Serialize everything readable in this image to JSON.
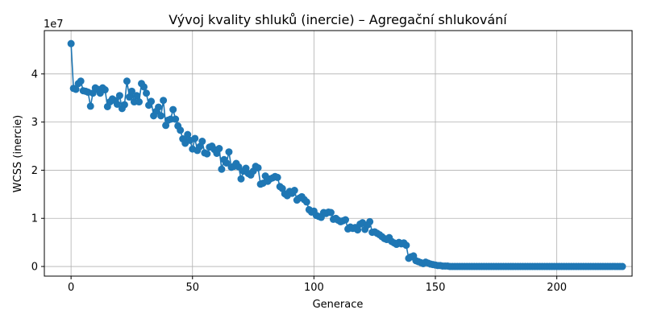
{
  "chart_data": {
    "type": "line",
    "title": "Vývoj kvality shluků (inercie) – Agregační shlukování",
    "xlabel": "Generace",
    "ylabel": "WCSS (inercie)",
    "y_offset_label": "1e7",
    "xlim": [
      -11,
      231
    ],
    "ylim": [
      -0.2,
      4.9
    ],
    "x_ticks": [
      0,
      50,
      100,
      150,
      200
    ],
    "y_ticks": [
      0,
      1,
      2,
      3,
      4
    ],
    "y_scale": 10000000,
    "grid": true,
    "legend": "none",
    "series": [
      {
        "color": "#1f77b4",
        "marker": "o",
        "x_start": 0,
        "x_step": 1,
        "values": [
          4.63,
          3.7,
          3.68,
          3.8,
          3.85,
          3.65,
          3.64,
          3.62,
          3.33,
          3.6,
          3.71,
          3.68,
          3.6,
          3.71,
          3.67,
          3.32,
          3.42,
          3.48,
          3.45,
          3.37,
          3.55,
          3.28,
          3.36,
          3.85,
          3.52,
          3.64,
          3.42,
          3.55,
          3.42,
          3.8,
          3.73,
          3.6,
          3.35,
          3.43,
          3.13,
          3.22,
          3.31,
          3.13,
          3.45,
          2.93,
          3.04,
          3.06,
          3.26,
          3.06,
          2.92,
          2.83,
          2.65,
          2.56,
          2.74,
          2.62,
          2.44,
          2.66,
          2.41,
          2.49,
          2.6,
          2.36,
          2.34,
          2.48,
          2.5,
          2.43,
          2.35,
          2.45,
          2.02,
          2.22,
          2.15,
          2.38,
          2.06,
          2.08,
          2.14,
          2.07,
          1.82,
          1.98,
          2.04,
          1.93,
          1.9,
          1.98,
          2.08,
          2.05,
          1.71,
          1.73,
          1.88,
          1.77,
          1.82,
          1.84,
          1.87,
          1.85,
          1.66,
          1.62,
          1.51,
          1.47,
          1.56,
          1.52,
          1.58,
          1.38,
          1.42,
          1.45,
          1.39,
          1.34,
          1.18,
          1.13,
          1.15,
          1.06,
          1.04,
          1.02,
          1.12,
          1.1,
          1.13,
          1.12,
          0.98,
          1.0,
          0.96,
          0.93,
          0.95,
          0.97,
          0.78,
          0.82,
          0.79,
          0.81,
          0.76,
          0.88,
          0.91,
          0.77,
          0.86,
          0.93,
          0.71,
          0.72,
          0.69,
          0.66,
          0.62,
          0.58,
          0.56,
          0.6,
          0.52,
          0.49,
          0.46,
          0.5,
          0.47,
          0.49,
          0.44,
          0.17,
          0.2,
          0.22,
          0.12,
          0.1,
          0.08,
          0.06,
          0.09,
          0.07,
          0.05,
          0.04,
          0.03,
          0.02,
          0.02,
          0.01,
          0.01,
          0.01,
          0.0,
          0.0,
          0.0,
          0.0,
          0.0,
          0.0,
          0.0,
          0.0,
          0.0,
          0.0,
          0.0,
          0.0,
          0.0,
          0.0,
          0.0,
          0.0,
          0.0,
          0.0,
          0.0,
          0.0,
          0.0,
          0.0,
          0.0,
          0.0,
          0.0,
          0.0,
          0.0,
          0.0,
          0.0,
          0.0,
          0.0,
          0.0,
          0.0,
          0.0,
          0.0,
          0.0,
          0.0,
          0.0,
          0.0,
          0.0,
          0.0,
          0.0,
          0.0,
          0.0,
          0.0,
          0.0,
          0.0,
          0.0,
          0.0,
          0.0,
          0.0,
          0.0,
          0.0,
          0.0,
          0.0,
          0.0,
          0.0,
          0.0,
          0.0,
          0.0,
          0.0,
          0.0,
          0.0,
          0.0,
          0.0,
          0.0,
          0.0,
          0.0,
          0.0,
          0.0,
          0.0,
          0.0
        ]
      }
    ]
  }
}
